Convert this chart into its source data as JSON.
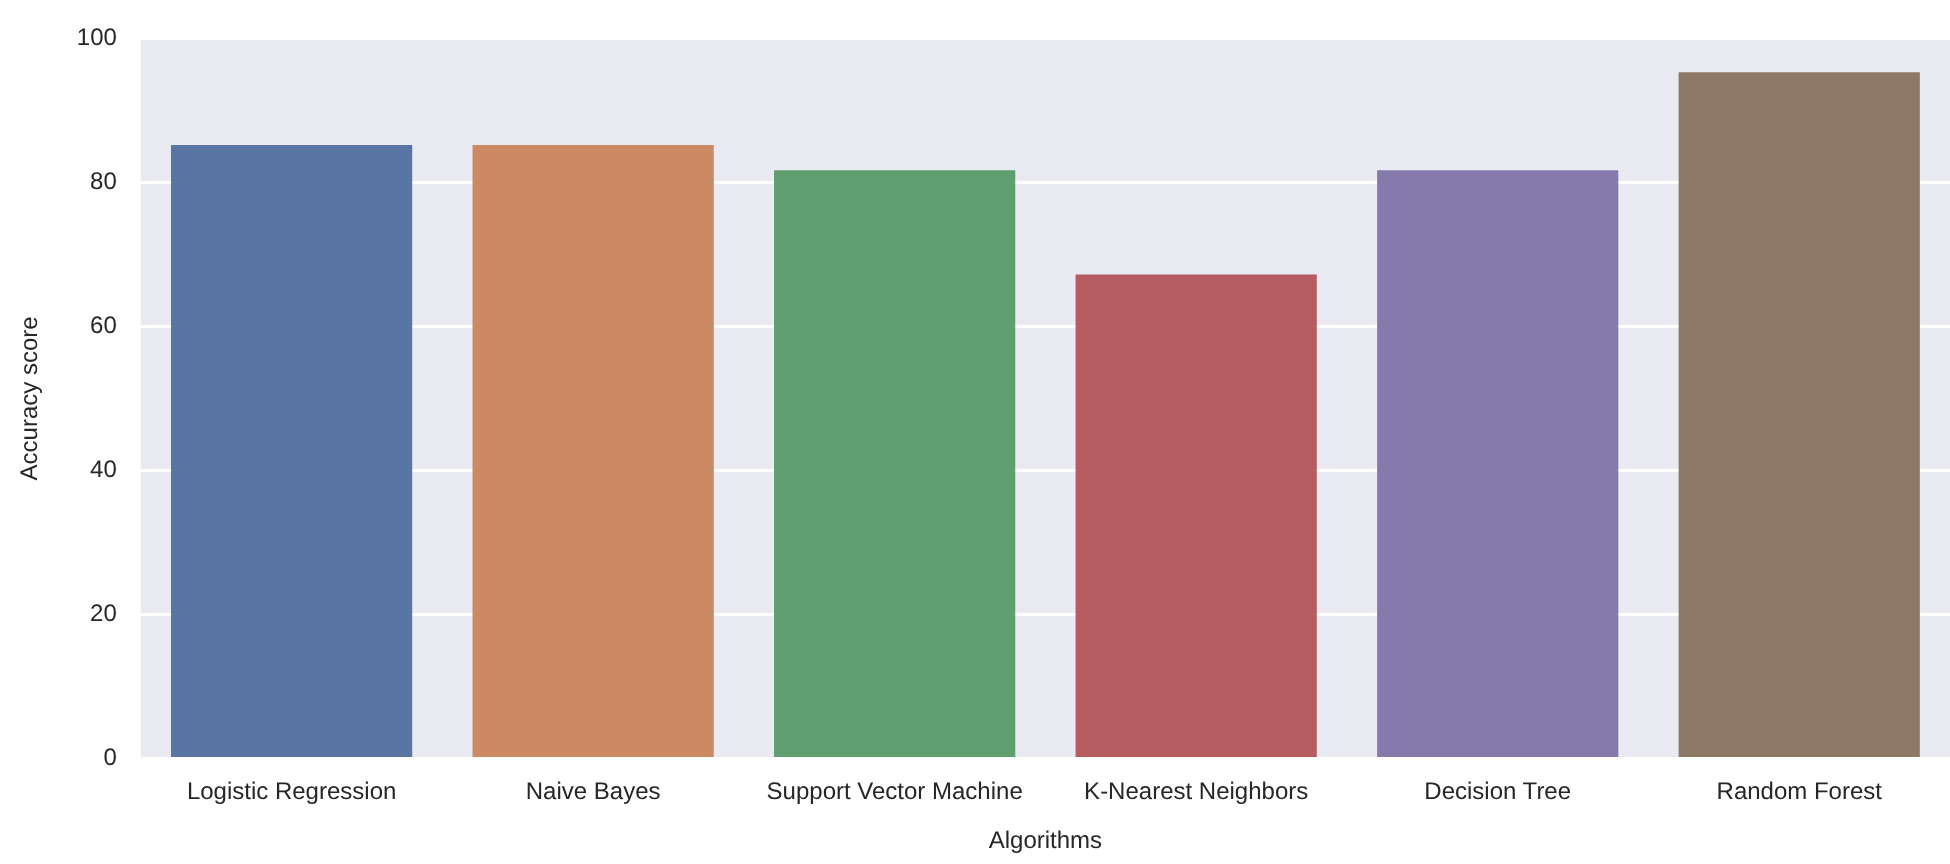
{
  "chart_data": {
    "type": "bar",
    "xlabel": "Algorithms",
    "ylabel": "Accuracy score",
    "categories": [
      "Logistic Regression",
      "Naive Bayes",
      "Support Vector Machine",
      "K-Nearest Neighbors",
      "Decision Tree",
      "Random Forest"
    ],
    "values": [
      85.2,
      85.2,
      81.7,
      67.2,
      81.7,
      95.3
    ],
    "colors": [
      "#5875a4",
      "#cc8963",
      "#5f9e6e",
      "#b55d60",
      "#857aab",
      "#8d7866"
    ],
    "ylim": [
      0,
      100
    ],
    "yticks": [
      0,
      20,
      40,
      60,
      80,
      100
    ],
    "grid": "y",
    "legend": false
  }
}
